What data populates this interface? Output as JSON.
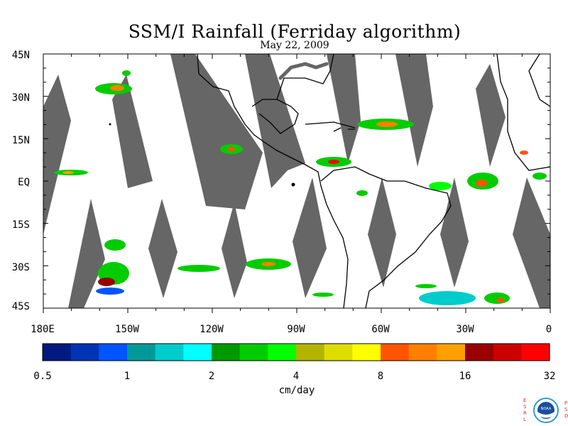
{
  "title": "SSM/I Rainfall (Ferriday algorithm)",
  "date": "May 22, 2009",
  "lat_labels": [
    "45N",
    "30N",
    "15N",
    "EQ",
    "15S",
    "30S",
    "45S"
  ],
  "lon_labels": [
    "180E",
    "150W",
    "120W",
    "90W",
    "60W",
    "30W",
    "0"
  ],
  "map_extent": {
    "lon_min": -180,
    "lon_max": 0,
    "lat_min": -45,
    "lat_max": 45
  },
  "colorbar": {
    "tick_labels": [
      "0.5",
      "1",
      "2",
      "4",
      "8",
      "16",
      "32"
    ],
    "units": "cm/day",
    "colors": [
      "#001a80",
      "#0033b3",
      "#0055ff",
      "#009999",
      "#00cccc",
      "#00ffff",
      "#009900",
      "#00cc00",
      "#00ff00",
      "#b3b300",
      "#dddd00",
      "#ffff00",
      "#ff5500",
      "#ff8000",
      "#ffa000",
      "#990000",
      "#cc0000",
      "#ff0000"
    ]
  },
  "no_data_color": "#666666",
  "logo": {
    "left_text": "ESRL",
    "center_text": "NOAA",
    "right_text": "PSD"
  }
}
